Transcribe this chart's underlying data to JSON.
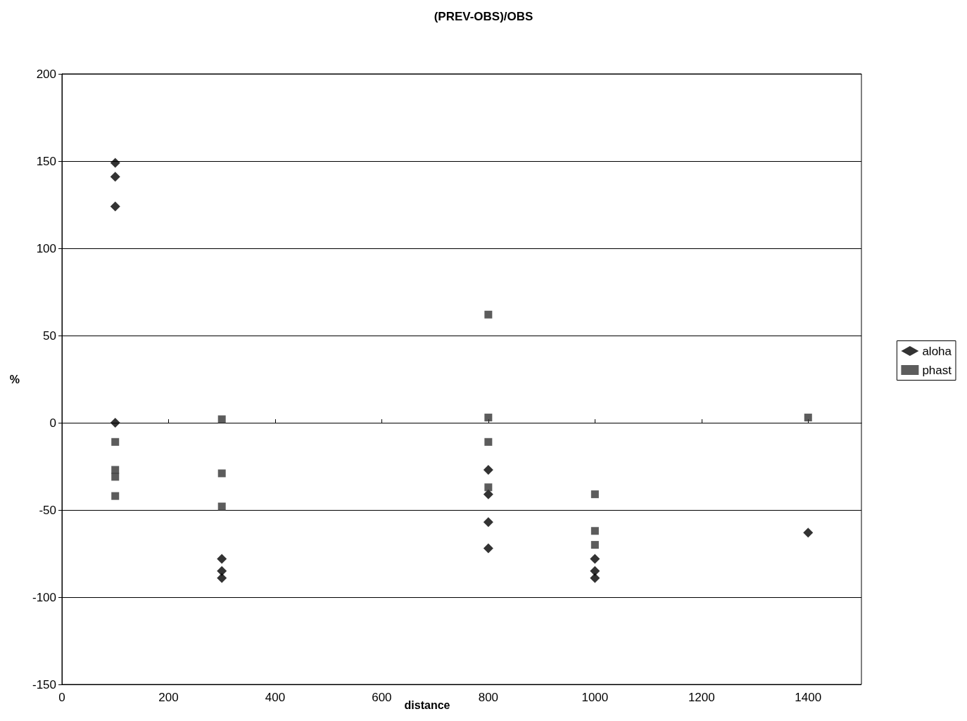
{
  "chart_data": {
    "type": "scatter",
    "title": "(PREV-OBS)/OBS",
    "xlabel": "distance",
    "ylabel": "%",
    "xlim": [
      0,
      1500
    ],
    "xticks": [
      0,
      200,
      400,
      600,
      800,
      1000,
      1200,
      1400
    ],
    "ylim": [
      -150,
      200
    ],
    "yticks": [
      -150,
      -100,
      -50,
      0,
      50,
      100,
      150,
      200
    ],
    "grid": "y",
    "legend": "right",
    "series": [
      {
        "name": "aloha",
        "color": "#000000",
        "marker": "diamond",
        "x": [
          100,
          100,
          100,
          100,
          300,
          300,
          300,
          800,
          800,
          800,
          800,
          1000,
          1000,
          1000,
          1400
        ],
        "values": [
          149,
          141,
          124,
          0,
          -78,
          -85,
          -89,
          -27,
          -41,
          -57,
          -72,
          -78,
          -85,
          -89,
          -63
        ]
      },
      {
        "name": "phast",
        "color": "#333333",
        "marker": "square",
        "x": [
          100,
          100,
          100,
          100,
          300,
          300,
          300,
          800,
          800,
          800,
          800,
          1000,
          1000,
          1000,
          1400
        ],
        "values": [
          -11,
          -27,
          -31,
          -42,
          2,
          -29,
          -48,
          62,
          3,
          -11,
          -37,
          -41,
          -62,
          -70,
          3
        ]
      }
    ]
  }
}
